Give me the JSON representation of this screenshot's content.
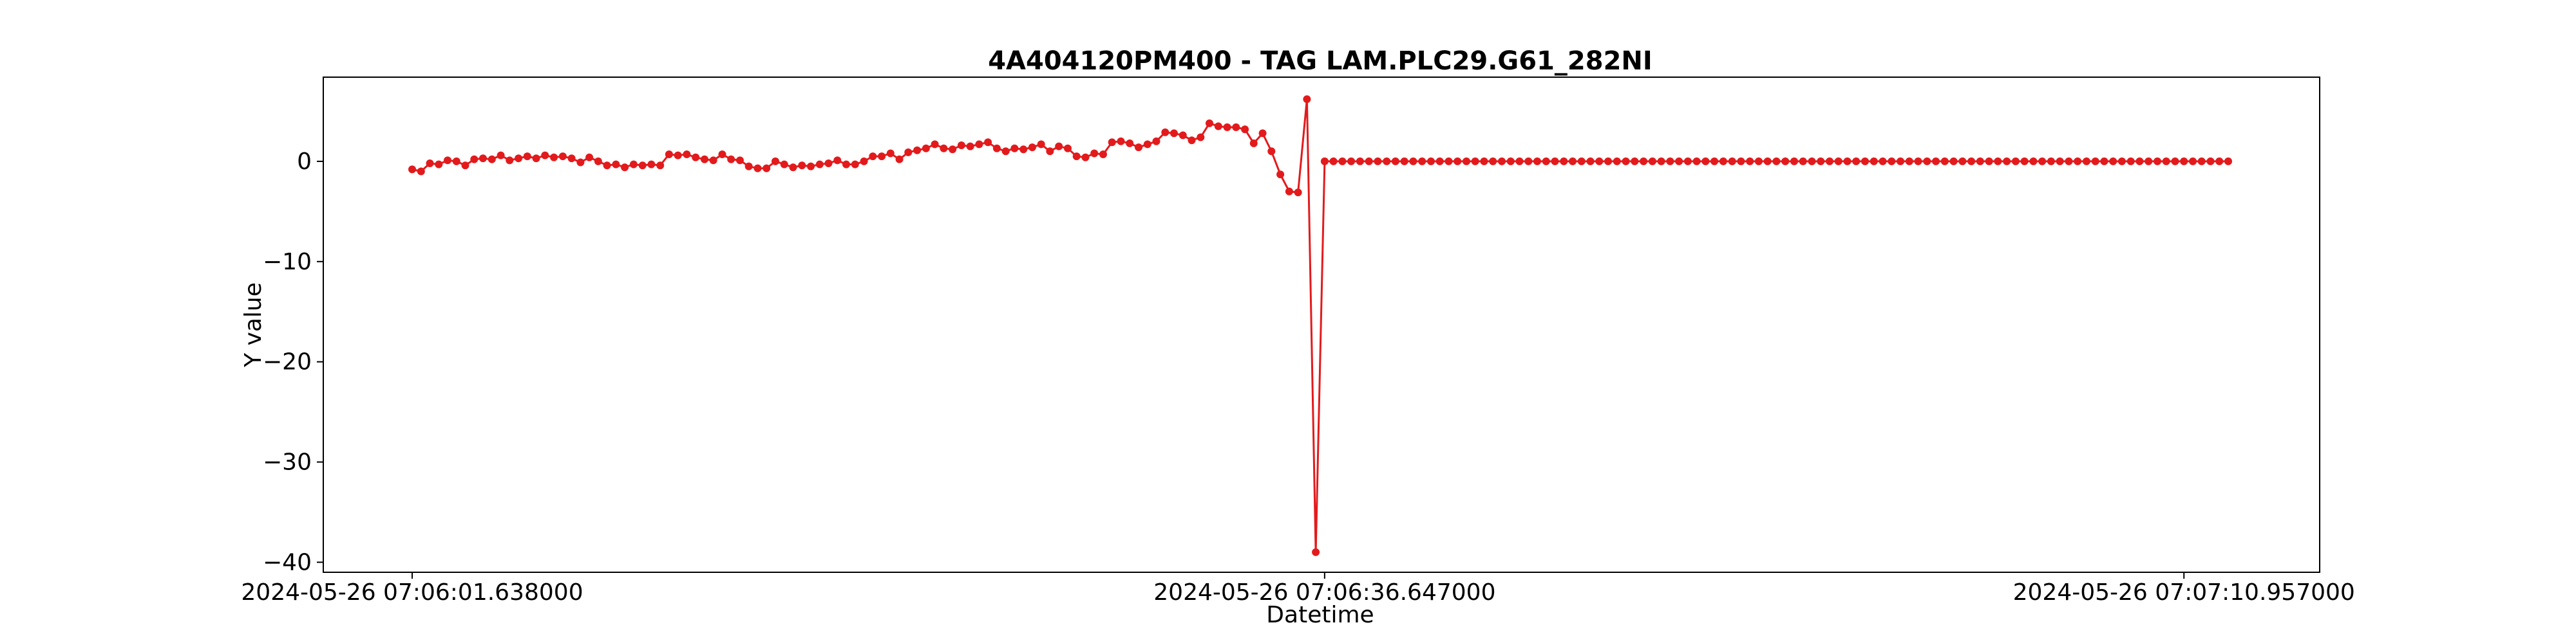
{
  "chart_data": {
    "type": "line",
    "title": "4A404120PM400 - TAG LAM.PLC29.G61_282NI",
    "xlabel": "Datetime",
    "ylabel": "Y value",
    "ylim": [
      -41,
      8.4
    ],
    "y_ticks": [
      0,
      -10,
      -20,
      -30,
      -40
    ],
    "y_tick_labels": [
      "0",
      "−10",
      "−20",
      "−30",
      "−40"
    ],
    "x_tick_labels": [
      "2024-05-26 07:06:01.638000",
      "2024-05-26 07:06:36.647000",
      "2024-05-26 07:07:10.957000"
    ],
    "x_tick_index": [
      0,
      103,
      200
    ],
    "grid": false,
    "marker": "circle",
    "colors": {
      "series": "#e31a1c",
      "axes": "#000000"
    },
    "series": [
      {
        "values": [
          -0.8,
          -1.0,
          -0.2,
          -0.3,
          0.1,
          0.0,
          -0.4,
          0.2,
          0.3,
          0.2,
          0.6,
          0.1,
          0.3,
          0.5,
          0.3,
          0.6,
          0.4,
          0.5,
          0.3,
          -0.1,
          0.4,
          0.0,
          -0.4,
          -0.3,
          -0.6,
          -0.3,
          -0.4,
          -0.3,
          -0.4,
          0.7,
          0.6,
          0.7,
          0.4,
          0.2,
          0.1,
          0.7,
          0.2,
          0.1,
          -0.5,
          -0.7,
          -0.7,
          0.0,
          -0.3,
          -0.6,
          -0.4,
          -0.5,
          -0.3,
          -0.2,
          0.1,
          -0.3,
          -0.3,
          0.0,
          0.5,
          0.5,
          0.8,
          0.2,
          0.9,
          1.1,
          1.3,
          1.7,
          1.3,
          1.2,
          1.6,
          1.5,
          1.7,
          1.9,
          1.3,
          1.0,
          1.3,
          1.2,
          1.4,
          1.7,
          1.0,
          1.5,
          1.3,
          0.5,
          0.4,
          0.8,
          0.7,
          1.9,
          2.0,
          1.8,
          1.4,
          1.7,
          2.0,
          2.9,
          2.8,
          2.6,
          2.1,
          2.4,
          3.8,
          3.5,
          3.4,
          3.4,
          3.2,
          1.8,
          2.8,
          1.0,
          -1.3,
          -3.0,
          -3.1,
          6.2,
          -39.0,
          0,
          0,
          0,
          0,
          0,
          0,
          0,
          0,
          0,
          0,
          0,
          0,
          0,
          0,
          0,
          0,
          0,
          0,
          0,
          0,
          0,
          0,
          0,
          0,
          0,
          0,
          0,
          0,
          0,
          0,
          0,
          0,
          0,
          0,
          0,
          0,
          0,
          0,
          0,
          0,
          0,
          0,
          0,
          0,
          0,
          0,
          0,
          0,
          0,
          0,
          0,
          0,
          0,
          0,
          0,
          0,
          0,
          0,
          0,
          0,
          0,
          0,
          0,
          0,
          0,
          0,
          0,
          0,
          0,
          0,
          0,
          0,
          0,
          0,
          0,
          0,
          0,
          0,
          0,
          0,
          0,
          0,
          0,
          0,
          0,
          0,
          0,
          0,
          0,
          0,
          0,
          0,
          0,
          0,
          0,
          0,
          0,
          0,
          0,
          0,
          0,
          0,
          0
        ]
      }
    ]
  }
}
